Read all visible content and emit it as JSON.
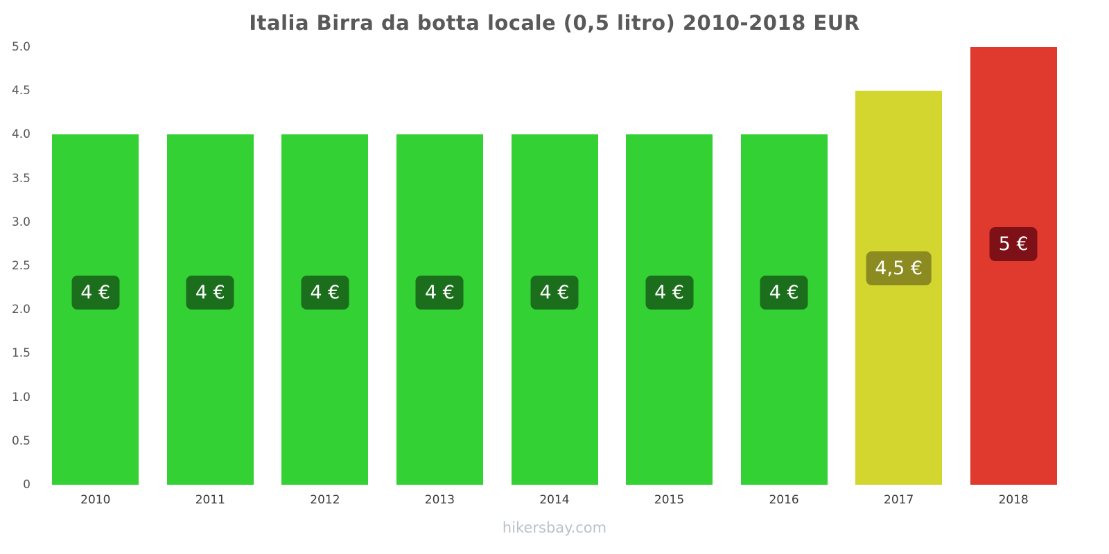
{
  "watermark": "hikersbay.com",
  "chart_data": {
    "type": "bar",
    "title": "Italia Birra da botta locale (0,5 litro) 2010-2018 EUR",
    "categories": [
      "2010",
      "2011",
      "2012",
      "2013",
      "2014",
      "2015",
      "2016",
      "2017",
      "2018"
    ],
    "values": [
      4,
      4,
      4,
      4,
      4,
      4,
      4,
      4.5,
      5
    ],
    "value_labels": [
      "4 €",
      "4 €",
      "4 €",
      "4 €",
      "4 €",
      "4 €",
      "4 €",
      "4,5 €",
      "5 €"
    ],
    "bar_colors": [
      "#33d133",
      "#33d133",
      "#33d133",
      "#33d133",
      "#33d133",
      "#33d133",
      "#33d133",
      "#d2d62f",
      "#e0392e"
    ],
    "label_bg_colors": [
      "#1b6e1b",
      "#1b6e1b",
      "#1b6e1b",
      "#1b6e1b",
      "#1b6e1b",
      "#1b6e1b",
      "#1b6e1b",
      "#8b8b21",
      "#7e1118"
    ],
    "xlabel": "",
    "ylabel": "",
    "ylim": [
      0,
      5
    ],
    "yticks": [
      0,
      0.5,
      1,
      1.5,
      2,
      2.5,
      3,
      3.5,
      4,
      4.5,
      5
    ],
    "ytick_labels": [
      "0",
      "0.5",
      "1.0",
      "1.5",
      "2.0",
      "2.5",
      "3.0",
      "3.5",
      "4.0",
      "4.5",
      "5.0"
    ],
    "grid": false,
    "legend": false,
    "title_color": "#595959",
    "currency": "EUR"
  }
}
